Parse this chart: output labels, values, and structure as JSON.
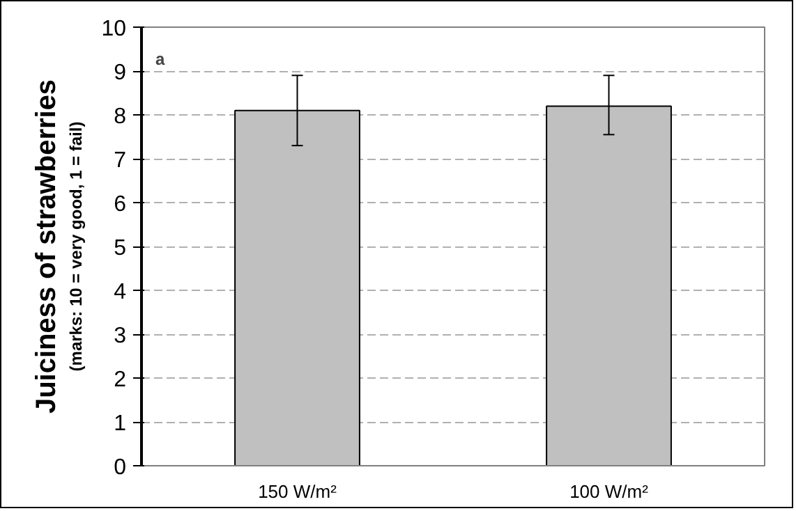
{
  "chart_data": {
    "type": "bar",
    "ylabel": "Juiciness of strawberries",
    "annotations": [
      "(marks: 10 = very good, 1 = fail)",
      "a"
    ],
    "categories": [
      "150 W/m²",
      "100 W/m²"
    ],
    "values": [
      8.1,
      8.2
    ],
    "errors": [
      [
        7.3,
        8.9
      ],
      [
        7.55,
        8.9
      ]
    ],
    "color": "#c0c0c0",
    "ylim": [
      0,
      10
    ],
    "yticks": [
      0,
      1,
      2,
      3,
      4,
      5,
      6,
      7,
      8,
      9,
      10
    ],
    "grid": "y"
  }
}
